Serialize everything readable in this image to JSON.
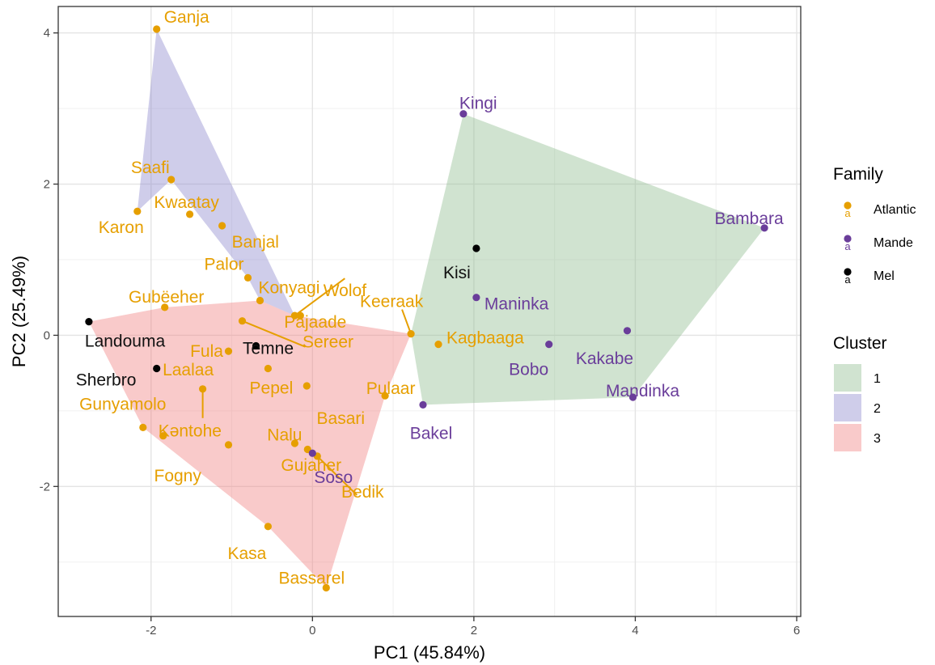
{
  "chart_data": {
    "type": "scatter",
    "title": "",
    "xlabel": "PC1 (45.84%)",
    "ylabel": "PC2 (25.49%)",
    "xlim": [
      -3.15,
      6.05
    ],
    "ylim": [
      -3.72,
      4.35
    ],
    "xticks": [
      -2,
      0,
      2,
      4,
      6
    ],
    "yticks": [
      -2,
      0,
      2,
      4
    ],
    "xtick_labels": [
      "-2",
      "0",
      "2",
      "4",
      "6"
    ],
    "ytick_labels": [
      "-2",
      "0",
      "2",
      "4"
    ],
    "grid": true,
    "legend_placement": "right",
    "family_legend": {
      "title": "Family",
      "items": [
        {
          "name": "Atlantic",
          "color": "#E69F00"
        },
        {
          "name": "Mande",
          "color": "#6A3D9A"
        },
        {
          "name": "Mel",
          "color": "#000000"
        }
      ]
    },
    "cluster_legend": {
      "title": "Cluster",
      "items": [
        {
          "name": "1",
          "color": "#8FBC8F"
        },
        {
          "name": "2",
          "color": "#8C88CC"
        },
        {
          "name": "3",
          "color": "#F08080"
        }
      ]
    },
    "hulls": [
      {
        "cluster": "1",
        "points": [
          [
            1.87,
            2.93
          ],
          [
            5.6,
            1.42
          ],
          [
            3.97,
            -0.82
          ],
          [
            1.37,
            -0.92
          ],
          [
            1.22,
            0.02
          ]
        ]
      },
      {
        "cluster": "2",
        "points": [
          [
            -1.93,
            4.05
          ],
          [
            -0.22,
            0.26
          ],
          [
            -0.65,
            0.46
          ],
          [
            -0.8,
            0.76
          ],
          [
            -1.75,
            2.06
          ],
          [
            -2.17,
            1.64
          ]
        ]
      },
      {
        "cluster": "3",
        "points": [
          [
            -2.77,
            0.18
          ],
          [
            -1.83,
            0.37
          ],
          [
            -0.65,
            0.46
          ],
          [
            -0.22,
            0.26
          ],
          [
            1.22,
            0.02
          ],
          [
            0.9,
            -0.8
          ],
          [
            0.17,
            -3.34
          ],
          [
            -0.55,
            -2.53
          ],
          [
            -2.1,
            -1.22
          ]
        ]
      }
    ],
    "points": [
      {
        "label": "Ganja",
        "family": "Atlantic",
        "x": -1.93,
        "y": 4.05
      },
      {
        "label": "Saafi",
        "family": "Atlantic",
        "x": -1.75,
        "y": 2.06
      },
      {
        "label": "Kwaatay",
        "family": "Atlantic",
        "x": -1.52,
        "y": 1.6
      },
      {
        "label": "Karon",
        "family": "Atlantic",
        "x": -2.17,
        "y": 1.64
      },
      {
        "label": "Banjal",
        "family": "Atlantic",
        "x": -1.12,
        "y": 1.45
      },
      {
        "label": "Palor",
        "family": "Atlantic",
        "x": -0.8,
        "y": 0.76
      },
      {
        "label": "Konyagi",
        "family": "Atlantic",
        "x": -0.65,
        "y": 0.46
      },
      {
        "label": "Wolof",
        "family": "Atlantic",
        "x": -0.22,
        "y": 0.26
      },
      {
        "label": "Pajaade",
        "family": "Atlantic",
        "x": -0.15,
        "y": 0.26
      },
      {
        "label": "Sereer",
        "family": "Atlantic",
        "x": -0.87,
        "y": 0.19
      },
      {
        "label": "Gubëeher",
        "family": "Atlantic",
        "x": -1.83,
        "y": 0.37
      },
      {
        "label": "Fula",
        "family": "Atlantic",
        "x": -1.04,
        "y": -0.21
      },
      {
        "label": "Laalaa",
        "family": "Atlantic",
        "x": -1.36,
        "y": -0.71
      },
      {
        "label": "Pepel",
        "family": "Atlantic",
        "x": -0.55,
        "y": -0.44
      },
      {
        "label": "Basari",
        "family": "Atlantic",
        "x": -0.07,
        "y": -0.67
      },
      {
        "label": "Gunyamolo",
        "family": "Atlantic",
        "x": -2.1,
        "y": -1.22
      },
      {
        "label": "Kəntohe",
        "family": "Atlantic",
        "x": -1.85,
        "y": -1.33
      },
      {
        "label": "Fogny",
        "family": "Atlantic",
        "x": -1.04,
        "y": -1.45
      },
      {
        "label": "Gujaher",
        "family": "Atlantic",
        "x": -0.22,
        "y": -1.43
      },
      {
        "label": "Nalu",
        "family": "Atlantic",
        "x": -0.06,
        "y": -1.51
      },
      {
        "label": "Bedik",
        "family": "Atlantic",
        "x": 0.06,
        "y": -1.6
      },
      {
        "label": "Kasa",
        "family": "Atlantic",
        "x": -0.55,
        "y": -2.53
      },
      {
        "label": "Bassarel",
        "family": "Atlantic",
        "x": 0.17,
        "y": -3.34
      },
      {
        "label": "Pulaar",
        "family": "Atlantic",
        "x": 0.9,
        "y": -0.8
      },
      {
        "label": "Keeraak",
        "family": "Atlantic",
        "x": 1.22,
        "y": 0.02
      },
      {
        "label": "Kagbaaga",
        "family": "Atlantic",
        "x": 1.56,
        "y": -0.12
      },
      {
        "label": "Kingi",
        "family": "Mande",
        "x": 1.87,
        "y": 2.93
      },
      {
        "label": "Bambara",
        "family": "Mande",
        "x": 5.6,
        "y": 1.42
      },
      {
        "label": "Maninka",
        "family": "Mande",
        "x": 2.03,
        "y": 0.5
      },
      {
        "label": "Bobo",
        "family": "Mande",
        "x": 2.93,
        "y": -0.12
      },
      {
        "label": "Kakabe",
        "family": "Mande",
        "x": 3.9,
        "y": 0.06
      },
      {
        "label": "Mandinka",
        "family": "Mande",
        "x": 3.97,
        "y": -0.82
      },
      {
        "label": "Bakel",
        "family": "Mande",
        "x": 1.37,
        "y": -0.92
      },
      {
        "label": "Soso",
        "family": "Mande",
        "x": 0.0,
        "y": -1.56
      },
      {
        "label": "Kisi",
        "family": "Mel",
        "x": 2.03,
        "y": 1.15
      },
      {
        "label": "Temne",
        "family": "Mel",
        "x": -0.7,
        "y": -0.14
      },
      {
        "label": "Landouma",
        "family": "Mel",
        "x": -2.77,
        "y": 0.18
      },
      {
        "label": "Sherbro",
        "family": "Mel",
        "x": -1.93,
        "y": -0.44
      }
    ]
  }
}
